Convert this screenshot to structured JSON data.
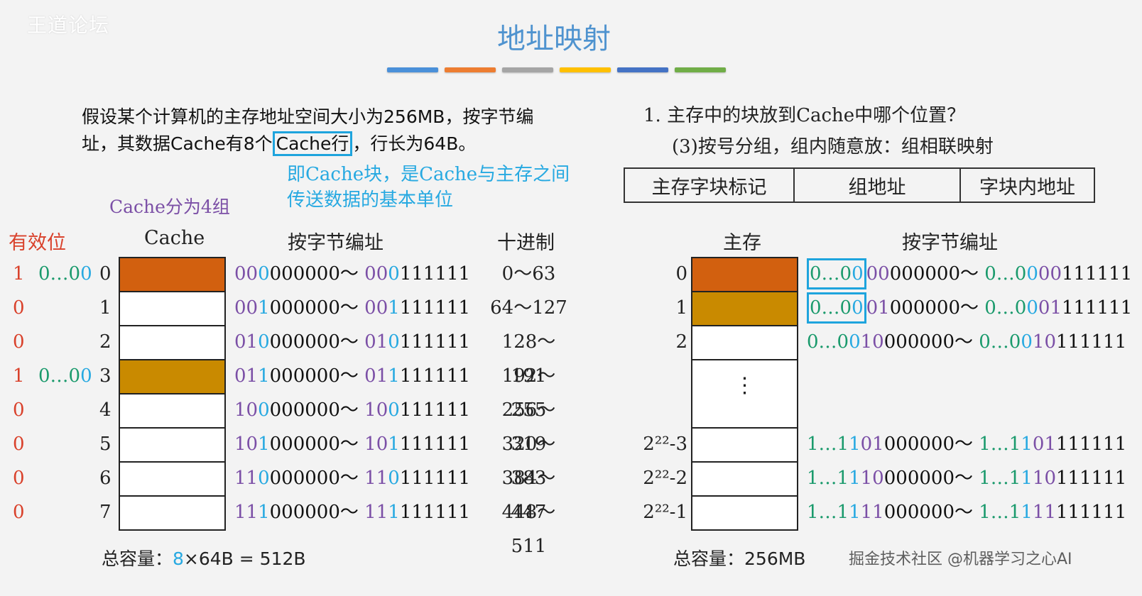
{
  "watermark": {
    "logo_text": "王道论坛",
    "bottom_text": "掘金技术社区 @机器学习之心AI"
  },
  "title": "地址映射",
  "stripe_colors": [
    "#4a90d9",
    "#ed7d31",
    "#a5a5a5",
    "#ffc000",
    "#4472c4",
    "#70ad47"
  ],
  "intro": {
    "line1": "假设某个计算机的主存地址空间大小为256MB，按字节编",
    "line2_pre": "址，其数据Cache有8个",
    "line2_boxed": "Cache行",
    "line2_post": "，行长为64B。"
  },
  "note": {
    "line1": "即Cache块，是Cache与主存之间",
    "line2": "传送数据的基本单位"
  },
  "groups_label": "Cache分为4组",
  "question": {
    "q1": "1. 主存中的块放到Cache中哪个位置？",
    "q2": "(3)按号分组，组内随意放：组相联映射"
  },
  "address_format": [
    "主存字块标记",
    "组地址",
    "字块内地址"
  ],
  "cache_section": {
    "headers": {
      "valid": "有效位",
      "cache": "Cache",
      "addr": "按字节编址",
      "dec": "十进制"
    },
    "rows": [
      {
        "valid": "1",
        "tag_a": "0…0",
        "tag_b": "0",
        "index": "0",
        "fill": "#d2600f",
        "a1": "00",
        "a2": "0",
        "start_rest": "000000",
        "b1": "00",
        "b2": "0",
        "end_rest": "111111",
        "dec": "0～63"
      },
      {
        "valid": "0",
        "tag_a": "",
        "tag_b": "",
        "index": "1",
        "fill": "#ffffff",
        "a1": "00",
        "a2": "1",
        "start_rest": "000000",
        "b1": "00",
        "b2": "1",
        "end_rest": "111111",
        "dec": "64～127"
      },
      {
        "valid": "0",
        "tag_a": "",
        "tag_b": "",
        "index": "2",
        "fill": "#ffffff",
        "a1": "01",
        "a2": "0",
        "start_rest": "000000",
        "b1": "01",
        "b2": "0",
        "end_rest": "111111",
        "dec": "128～191"
      },
      {
        "valid": "1",
        "tag_a": "0…0",
        "tag_b": "0",
        "index": "3",
        "fill": "#c98a00",
        "a1": "01",
        "a2": "1",
        "start_rest": "000000",
        "b1": "01",
        "b2": "1",
        "end_rest": "111111",
        "dec": "192～255"
      },
      {
        "valid": "0",
        "tag_a": "",
        "tag_b": "",
        "index": "4",
        "fill": "#ffffff",
        "a1": "10",
        "a2": "0",
        "start_rest": "000000",
        "b1": "10",
        "b2": "0",
        "end_rest": "111111",
        "dec": "256～319"
      },
      {
        "valid": "0",
        "tag_a": "",
        "tag_b": "",
        "index": "5",
        "fill": "#ffffff",
        "a1": "10",
        "a2": "1",
        "start_rest": "000000",
        "b1": "10",
        "b2": "1",
        "end_rest": "111111",
        "dec": "320～383"
      },
      {
        "valid": "0",
        "tag_a": "",
        "tag_b": "",
        "index": "6",
        "fill": "#ffffff",
        "a1": "11",
        "a2": "0",
        "start_rest": "000000",
        "b1": "11",
        "b2": "0",
        "end_rest": "111111",
        "dec": "384～ 447"
      },
      {
        "valid": "0",
        "tag_a": "",
        "tag_b": "",
        "index": "7",
        "fill": "#ffffff",
        "a1": "11",
        "a2": "1",
        "start_rest": "000000",
        "b1": "11",
        "b2": "1",
        "end_rest": "111111",
        "dec": "448～ 511"
      }
    ],
    "total_label": "总容量：",
    "total_mult": "8",
    "total_rest": "×64B = 512B"
  },
  "memory_section": {
    "headers": {
      "mem": "主存",
      "addr": "按字节编址"
    },
    "rows": [
      {
        "index": "0",
        "fill": "#d2600f",
        "tag": "0…0",
        "g": "0",
        "p": "00",
        "rest": "000000",
        "etag": "0…0",
        "eg": "0",
        "ep": "00",
        "erest": "111111",
        "boxed": true
      },
      {
        "index": "1",
        "fill": "#c98a00",
        "tag": "0…0",
        "g": "0",
        "p": "01",
        "rest": "000000",
        "etag": "0…0",
        "eg": "0",
        "ep": "01",
        "erest": "111111",
        "boxed": true
      },
      {
        "index": "2",
        "fill": "#ffffff",
        "tag": "0…0",
        "g": "0",
        "p": "10",
        "rest": "000000",
        "etag": "0…0",
        "eg": "0",
        "ep": "10",
        "erest": "111111",
        "boxed": false
      },
      {
        "index": "⋮",
        "fill": "#ffffff",
        "ellipsis": true
      },
      {
        "index": "2²²-3",
        "fill": "#ffffff",
        "tag": "1…1",
        "g": "1",
        "p": "01",
        "rest": "000000",
        "etag": "1…1",
        "eg": "1",
        "ep": "01",
        "erest": "111111",
        "boxed": false
      },
      {
        "index": "2²²-2",
        "fill": "#ffffff",
        "tag": "1…1",
        "g": "1",
        "p": "10",
        "rest": "000000",
        "etag": "1…1",
        "eg": "1",
        "ep": "10",
        "erest": "111111",
        "boxed": false
      },
      {
        "index": "2²²-1",
        "fill": "#ffffff",
        "tag": "1…1",
        "g": "1",
        "p": "11",
        "rest": "000000",
        "etag": "1…1",
        "eg": "1",
        "ep": "11",
        "erest": "111111",
        "boxed": false
      }
    ],
    "total_label": "总容量：",
    "total_value": "256MB"
  }
}
